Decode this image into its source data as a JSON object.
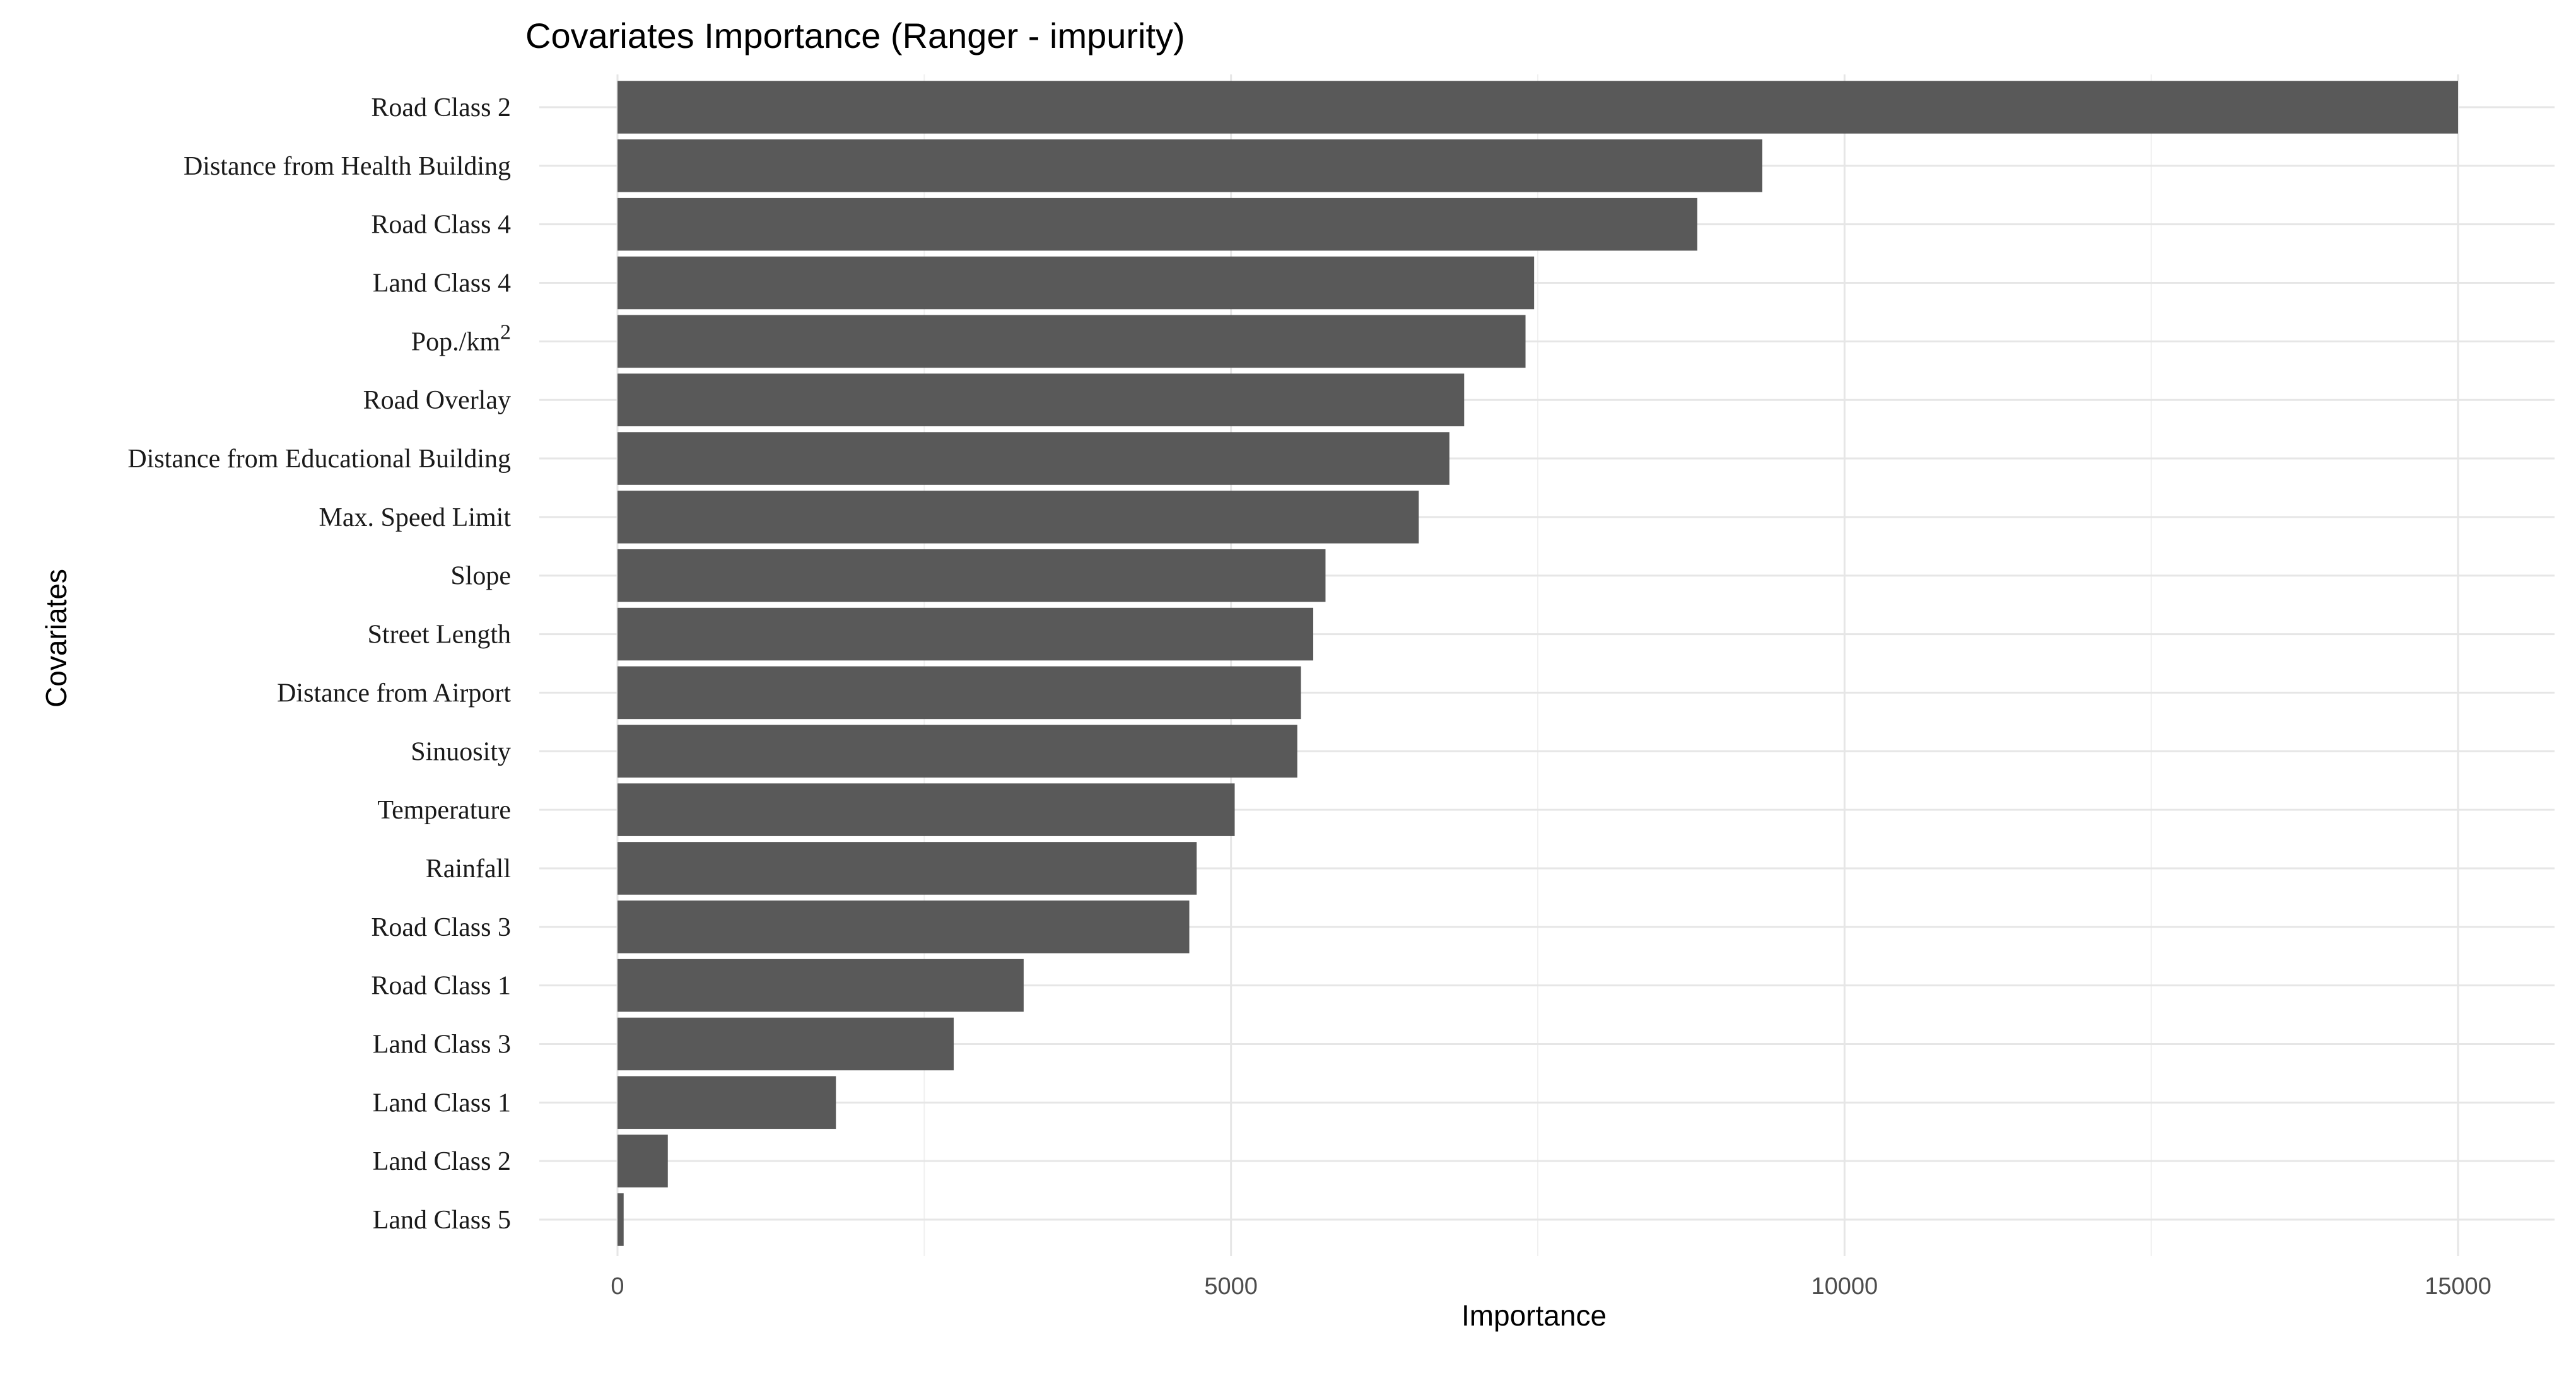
{
  "chart_data": {
    "type": "bar",
    "orientation": "horizontal",
    "title": "Covariates Importance (Ranger - impurity)",
    "xlabel": "Importance",
    "ylabel": "Covariates",
    "xlim": [
      -1300,
      15800
    ],
    "xticks": [
      0,
      5000,
      10000,
      15000
    ],
    "xtick_labels": [
      "0",
      "5000",
      "10000",
      "15000"
    ],
    "grid": true,
    "bar_color": "#595959",
    "categories": [
      "Road Class 2",
      "Distance from Health Building",
      "Road Class 4",
      "Land Class 4",
      "Pop./km2",
      "Road Overlay",
      "Distance from Educational Building",
      "Max. Speed Limit",
      "Slope",
      "Street Length",
      "Distance from Airport",
      "Sinuosity",
      "Temperature",
      "Rainfall",
      "Road Class 3",
      "Road Class 1",
      "Land Class 3",
      "Land Class 1",
      "Land Class 2",
      "Land Class 5"
    ],
    "values": [
      15000,
      9330,
      8800,
      7470,
      7400,
      6900,
      6780,
      6530,
      5770,
      5670,
      5570,
      5540,
      5030,
      4720,
      4660,
      3310,
      2740,
      1780,
      410,
      50
    ]
  }
}
